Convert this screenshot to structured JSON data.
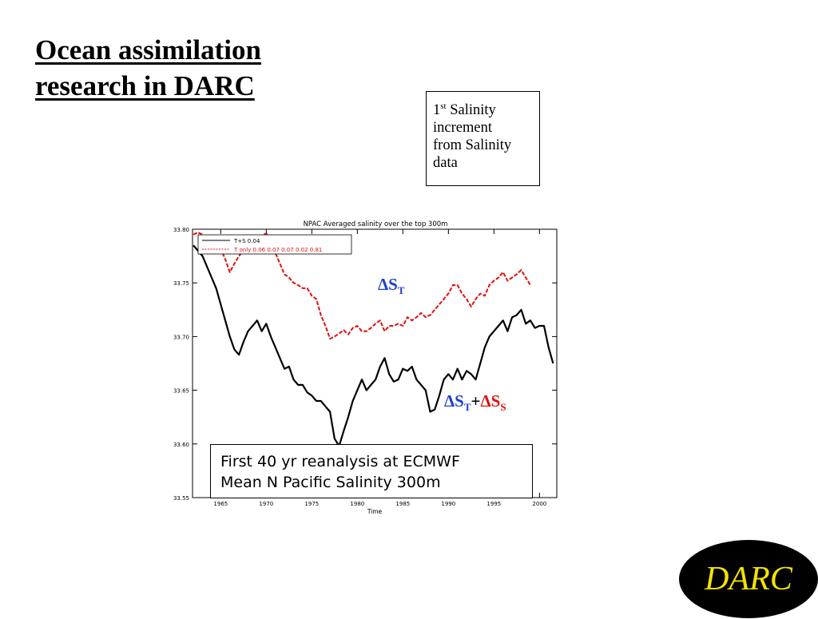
{
  "slide": {
    "title_line1": "Ocean assimilation",
    "title_line2": "research in DARC"
  },
  "note": {
    "num": "1",
    "sup": "st",
    "line1": "Salinity",
    "line2": "increment",
    "line3": "from Salinity",
    "line4": "data"
  },
  "reanalysis": {
    "line1": "First 40 yr reanalysis at ECMWF",
    "line2": "Mean N Pacific Salinity 300m"
  },
  "annotations": {
    "delta": "Δ",
    "s": "S",
    "t_sub": "T",
    "s_sub": "S",
    "plus": "+"
  },
  "logo": {
    "text": "DARC",
    "bg": "#000000",
    "fg": "#f3e300"
  },
  "chart_data": {
    "type": "line",
    "title": "NPAC Averaged salinity over the top 300m",
    "xlabel": "Time",
    "ylabel": "",
    "xlim": [
      1961.9,
      2001.9
    ],
    "ylim": [
      33.55,
      33.8
    ],
    "xticks": [
      1965,
      1970,
      1975,
      1980,
      1985,
      1990,
      1995,
      2000
    ],
    "xtick_labels": [
      "1965",
      "1970",
      "1975",
      "1980",
      "1985",
      "1990",
      "1995",
      "2000"
    ],
    "yticks": [
      33.55,
      33.6,
      33.65,
      33.7,
      33.75,
      33.8
    ],
    "ytick_labels": [
      "33.55",
      "33.60",
      "33.65",
      "33.70",
      "33.75",
      "33.80"
    ],
    "grid": false,
    "legend": {
      "placement": "top-left",
      "entries": [
        {
          "label": "T+S  0.04",
          "color": "#000000"
        },
        {
          "label": "T only 0.06  0.07  0.07  0.02  0.81",
          "color": "#e01010"
        }
      ]
    },
    "series": [
      {
        "name": "T+S",
        "color": "#000000",
        "style": "solid",
        "x": [
          1962.0,
          1962.5,
          1963.0,
          1963.5,
          1964.0,
          1964.5,
          1965.0,
          1965.5,
          1966.0,
          1966.5,
          1967.0,
          1967.5,
          1968.0,
          1968.5,
          1969.0,
          1969.5,
          1970.0,
          1970.5,
          1971.0,
          1971.5,
          1972.0,
          1972.5,
          1973.0,
          1973.5,
          1974.0,
          1974.5,
          1975.0,
          1975.5,
          1976.0,
          1976.5,
          1977.0,
          1977.5,
          1978.0,
          1978.5,
          1979.0,
          1979.5,
          1980.0,
          1980.5,
          1981.0,
          1981.5,
          1982.0,
          1982.5,
          1983.0,
          1983.5,
          1984.0,
          1984.5,
          1985.0,
          1985.5,
          1986.0,
          1986.5,
          1987.0,
          1987.5,
          1988.0,
          1988.5,
          1989.0,
          1989.5,
          1990.0,
          1990.5,
          1991.0,
          1991.5,
          1992.0,
          1992.5,
          1993.0,
          1993.5,
          1994.0,
          1994.5,
          1995.0,
          1995.5,
          1996.0,
          1996.5,
          1997.0,
          1997.5,
          1998.0,
          1998.5,
          1999.0,
          1999.5,
          2000.0,
          2000.5,
          2001.0,
          2001.5
        ],
        "values": [
          33.785,
          33.78,
          33.775,
          33.765,
          33.755,
          33.745,
          33.73,
          33.715,
          33.7,
          33.688,
          33.683,
          33.695,
          33.705,
          33.71,
          33.715,
          33.705,
          33.712,
          33.7,
          33.69,
          33.68,
          33.67,
          33.672,
          33.66,
          33.655,
          33.655,
          33.648,
          33.645,
          33.64,
          33.64,
          33.635,
          33.63,
          33.605,
          33.598,
          33.612,
          33.625,
          33.64,
          33.65,
          33.66,
          33.65,
          33.655,
          33.66,
          33.672,
          33.68,
          33.665,
          33.658,
          33.66,
          33.67,
          33.668,
          33.672,
          33.66,
          33.655,
          33.65,
          33.63,
          33.632,
          33.645,
          33.66,
          33.665,
          33.66,
          33.67,
          33.66,
          33.668,
          33.665,
          33.66,
          33.675,
          33.69,
          33.7,
          33.705,
          33.71,
          33.715,
          33.705,
          33.718,
          33.72,
          33.725,
          33.712,
          33.715,
          33.708,
          33.71,
          33.71,
          33.69,
          33.675
        ]
      },
      {
        "name": "T only",
        "color": "#e01010",
        "style": "dashed",
        "x": [
          1962.0,
          1962.5,
          1963.0,
          1963.5,
          1964.0,
          1964.5,
          1965.0,
          1965.5,
          1966.0,
          1966.5,
          1967.0,
          1967.5,
          1968.0,
          1968.5,
          1969.0,
          1969.5,
          1970.0,
          1970.5,
          1971.0,
          1971.5,
          1972.0,
          1972.5,
          1973.0,
          1973.5,
          1974.0,
          1974.5,
          1975.0,
          1975.5,
          1976.0,
          1976.5,
          1977.0,
          1977.5,
          1978.0,
          1978.5,
          1979.0,
          1979.5,
          1980.0,
          1980.5,
          1981.0,
          1981.5,
          1982.0,
          1982.5,
          1983.0,
          1983.5,
          1984.0,
          1984.5,
          1985.0,
          1985.5,
          1986.0,
          1986.5,
          1987.0,
          1987.5,
          1988.0,
          1988.5,
          1989.0,
          1989.5,
          1990.0,
          1990.5,
          1991.0,
          1991.5,
          1992.0,
          1992.5,
          1993.0,
          1993.5,
          1994.0,
          1994.5,
          1995.0,
          1995.5,
          1996.0,
          1996.5,
          1997.0,
          1997.5,
          1998.0,
          1998.5,
          1999.0
        ],
        "values": [
          33.795,
          33.797,
          33.795,
          33.79,
          33.79,
          33.785,
          33.782,
          33.772,
          33.76,
          33.768,
          33.775,
          33.78,
          33.785,
          33.79,
          33.785,
          33.792,
          33.797,
          33.785,
          33.778,
          33.768,
          33.758,
          33.755,
          33.75,
          33.748,
          33.745,
          33.745,
          33.738,
          33.735,
          33.72,
          33.71,
          33.698,
          33.7,
          33.703,
          33.706,
          33.702,
          33.708,
          33.71,
          33.705,
          33.705,
          33.708,
          33.712,
          33.715,
          33.705,
          33.71,
          33.71,
          33.712,
          33.71,
          33.718,
          33.715,
          33.718,
          33.722,
          33.718,
          33.72,
          33.725,
          33.73,
          33.735,
          33.74,
          33.748,
          33.748,
          33.74,
          33.735,
          33.728,
          33.735,
          33.74,
          33.738,
          33.748,
          33.752,
          33.755,
          33.76,
          33.752,
          33.755,
          33.758,
          33.762,
          33.755,
          33.748
        ]
      }
    ]
  }
}
